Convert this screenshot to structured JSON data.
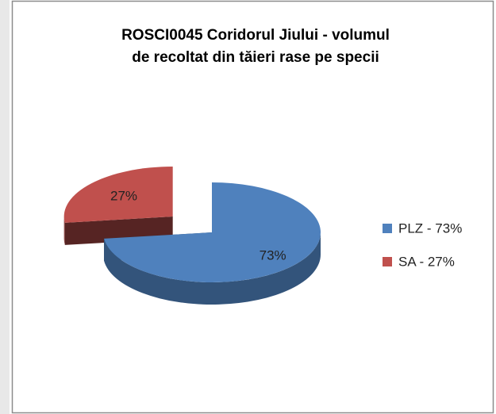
{
  "chart_data": {
    "type": "pie",
    "title": [
      "ROSCI0045 Coridorul Jiului - volumul",
      "de recoltat din tăieri rase pe specii"
    ],
    "categories": [
      "PLZ - 73%",
      "SA - 27%"
    ],
    "values": [
      73,
      27
    ],
    "value_labels": [
      "73%",
      "27%"
    ],
    "colors": [
      "#4f81bd",
      "#c0504d"
    ],
    "legend": "right"
  }
}
